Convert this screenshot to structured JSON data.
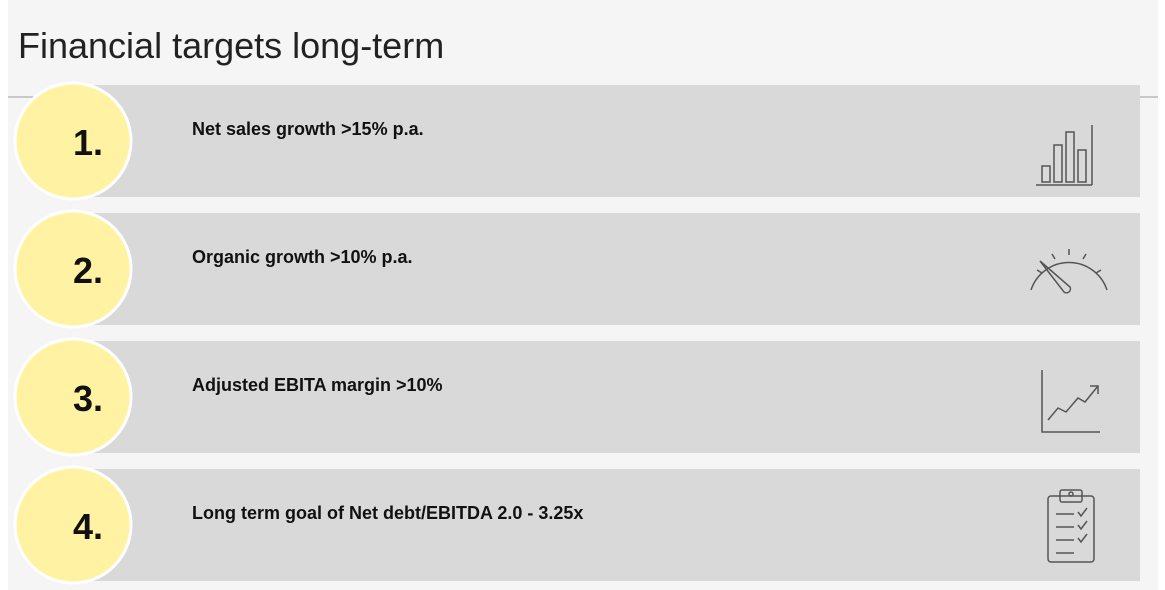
{
  "title": "Financial targets long-term",
  "items": [
    {
      "number": "1.",
      "label": "Net sales growth >15% p.a."
    },
    {
      "number": "2.",
      "label": "Organic growth >10% p.a."
    },
    {
      "number": "3.",
      "label": "Adjusted EBITA margin >10%"
    },
    {
      "number": "4.",
      "label": "Long term goal of Net debt/EBITDA 2.0 - 3.25x"
    }
  ]
}
